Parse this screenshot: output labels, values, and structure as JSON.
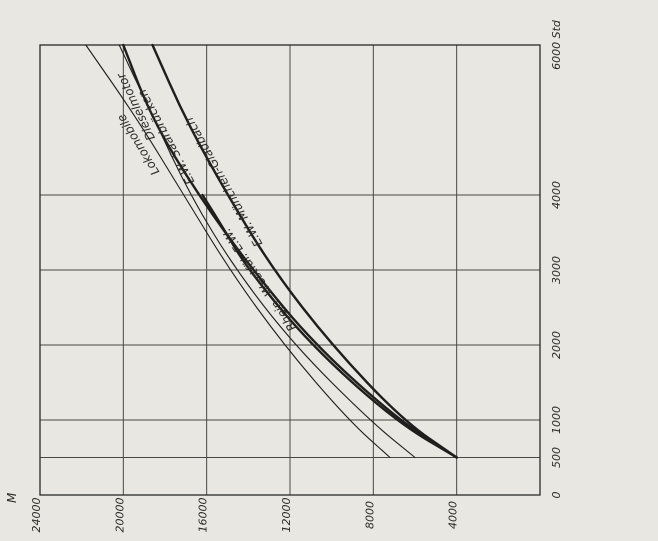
{
  "chart_data": {
    "type": "line",
    "orientation": "rotated-90",
    "xlabel": "Std",
    "ylabel": "M",
    "x_ticks": [
      "0",
      "500",
      "1000",
      "2000",
      "3000",
      "4000",
      "6000 Std"
    ],
    "y_ticks": [
      "4000",
      "8000",
      "12000",
      "16000",
      "20000",
      "24000"
    ],
    "xlim": [
      0,
      6000
    ],
    "ylim": [
      0,
      24000
    ],
    "grid": true,
    "series": [
      {
        "name": "E.W. München-Gladbach",
        "x": [
          500,
          1000,
          2000,
          3000,
          4000,
          5000,
          6000
        ],
        "y": [
          4000,
          6600,
          10000,
          12800,
          15000,
          17000,
          18600
        ],
        "weight": "bold"
      },
      {
        "name": "E.W. Saarbrücken",
        "x": [
          500,
          1000,
          2000,
          3000,
          4000,
          5000,
          6000
        ],
        "y": [
          4000,
          6800,
          10800,
          13800,
          16400,
          18600,
          20000
        ],
        "weight": "bold"
      },
      {
        "name": "Rhein.-Westfäl. E.W.",
        "x": [
          500,
          1000,
          2000,
          3000,
          3600,
          4000
        ],
        "y": [
          4000,
          7000,
          11000,
          14000,
          15300,
          16200
        ],
        "weight": "bold"
      },
      {
        "name": "Dieselmotor",
        "x": [
          500,
          1000,
          2000,
          3000,
          4000,
          5000,
          6000
        ],
        "y": [
          6000,
          8200,
          11800,
          14600,
          16800,
          18500,
          20200
        ],
        "weight": "thin"
      },
      {
        "name": "Lokomobile",
        "x": [
          500,
          1000,
          2000,
          3000,
          4000,
          5000,
          6000
        ],
        "y": [
          7200,
          9200,
          12300,
          14900,
          17100,
          19300,
          21800
        ],
        "weight": "thin"
      }
    ],
    "labels": [
      {
        "text": "E.W. München-Gladbach",
        "series": 0
      },
      {
        "text": "E.W. Saarbrücken",
        "series": 1
      },
      {
        "text": "Rhein.-Westfäl. E.W.",
        "series": 2
      },
      {
        "text": "Dieselmotor",
        "series": 3
      },
      {
        "text": "Lokomobile",
        "series": 4
      }
    ]
  }
}
